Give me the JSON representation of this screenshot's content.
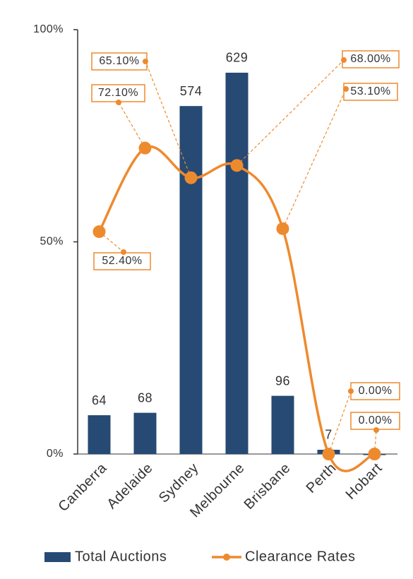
{
  "chart_data": {
    "type": "combo",
    "categories": [
      "Canberra",
      "Adelaide",
      "Sydney",
      "Melbourne",
      "Brisbane",
      "Perth",
      "Hobart"
    ],
    "series": [
      {
        "name": "Total Auctions",
        "type": "bar",
        "axis": "y2",
        "color": "#264a73",
        "values": [
          64,
          68,
          574,
          629,
          96,
          7,
          0
        ],
        "value_labels": [
          "64",
          "68",
          "574",
          "629",
          "96",
          "7",
          null
        ]
      },
      {
        "name": "Clearance Rates",
        "type": "line",
        "color": "#ee8a2e",
        "values": [
          52.4,
          72.1,
          65.1,
          68.0,
          53.1,
          0,
          0
        ],
        "value_labels": [
          "52.40%",
          "72.10%",
          "65.10%",
          "68.00%",
          "53.10%",
          "0.00%",
          "0.00%"
        ]
      }
    ],
    "ylim": [
      0,
      100
    ],
    "yticks": [
      {
        "value": 0,
        "label": "0%"
      },
      {
        "value": 50,
        "label": "50%"
      },
      {
        "value": 100,
        "label": "100%"
      }
    ],
    "y2lim": [
      0,
      700
    ],
    "legend": "bottom"
  }
}
